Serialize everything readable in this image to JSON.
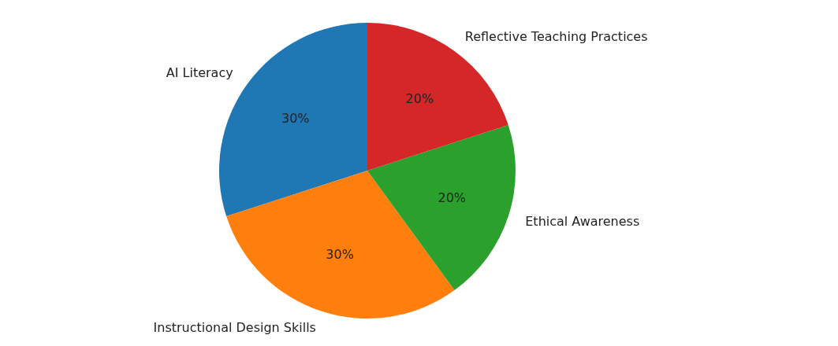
{
  "chart_data": {
    "type": "pie",
    "categories": [
      "AI Literacy",
      "Instructional Design Skills",
      "Ethical Awareness",
      "Reflective Teaching Practices"
    ],
    "values": [
      30,
      30,
      20,
      20
    ],
    "colors": [
      "#1f77b4",
      "#ff7f0e",
      "#2ca02c",
      "#d62728"
    ],
    "value_labels": [
      "30%",
      "30%",
      "20%",
      "20%"
    ]
  }
}
